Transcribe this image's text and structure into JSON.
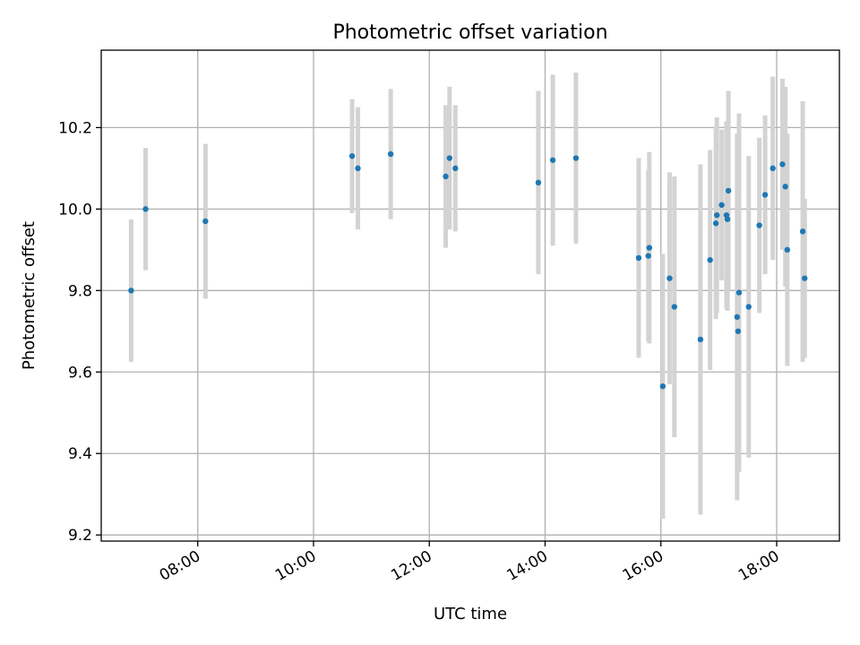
{
  "chart_data": {
    "type": "scatter",
    "title": "Photometric offset variation",
    "xlabel": "UTC time",
    "ylabel": "Photometric offset",
    "xlim": [
      "06:20",
      "19:05"
    ],
    "ylim": [
      9.185,
      10.39
    ],
    "grid": true,
    "x_ticks": [
      "08:00",
      "10:00",
      "12:00",
      "14:00",
      "16:00",
      "18:00"
    ],
    "y_ticks": [
      9.2,
      9.4,
      9.6,
      9.8,
      10.0,
      10.2
    ],
    "point_color": "#1f77b4",
    "errorbar_color": "#d3d3d3",
    "series": [
      {
        "points": [
          {
            "x": "06:51",
            "y": 9.8,
            "err": 0.175
          },
          {
            "x": "07:06",
            "y": 10.0,
            "err": 0.15
          },
          {
            "x": "08:08",
            "y": 9.97,
            "err": 0.19
          },
          {
            "x": "10:40",
            "y": 10.13,
            "err": 0.14
          },
          {
            "x": "10:46",
            "y": 10.1,
            "err": 0.15
          },
          {
            "x": "11:20",
            "y": 10.135,
            "err": 0.16
          },
          {
            "x": "12:17",
            "y": 10.08,
            "err": 0.175
          },
          {
            "x": "12:21",
            "y": 10.125,
            "err": 0.175
          },
          {
            "x": "12:27",
            "y": 10.1,
            "err": 0.155
          },
          {
            "x": "13:53",
            "y": 10.065,
            "err": 0.225
          },
          {
            "x": "14:08",
            "y": 10.12,
            "err": 0.21
          },
          {
            "x": "14:32",
            "y": 10.125,
            "err": 0.21
          },
          {
            "x": "15:37",
            "y": 9.88,
            "err": 0.245
          },
          {
            "x": "15:47",
            "y": 9.885,
            "err": 0.21
          },
          {
            "x": "15:48",
            "y": 9.905,
            "err": 0.235
          },
          {
            "x": "16:02",
            "y": 9.565,
            "err": 0.325
          },
          {
            "x": "16:09",
            "y": 9.83,
            "err": 0.26
          },
          {
            "x": "16:14",
            "y": 9.76,
            "err": 0.32
          },
          {
            "x": "16:41",
            "y": 9.68,
            "err": 0.43
          },
          {
            "x": "16:51",
            "y": 9.875,
            "err": 0.27
          },
          {
            "x": "16:57",
            "y": 9.965,
            "err": 0.235
          },
          {
            "x": "16:58",
            "y": 9.985,
            "err": 0.24
          },
          {
            "x": "17:03",
            "y": 10.01,
            "err": 0.185
          },
          {
            "x": "17:08",
            "y": 9.985,
            "err": 0.23
          },
          {
            "x": "17:09",
            "y": 9.975,
            "err": 0.225
          },
          {
            "x": "17:10",
            "y": 10.045,
            "err": 0.245
          },
          {
            "x": "17:19",
            "y": 9.735,
            "err": 0.45
          },
          {
            "x": "17:20",
            "y": 9.7,
            "err": 0.34
          },
          {
            "x": "17:21",
            "y": 9.795,
            "err": 0.44
          },
          {
            "x": "17:31",
            "y": 9.76,
            "err": 0.37
          },
          {
            "x": "17:42",
            "y": 9.96,
            "err": 0.215
          },
          {
            "x": "17:48",
            "y": 10.035,
            "err": 0.195
          },
          {
            "x": "17:56",
            "y": 10.1,
            "err": 0.225
          },
          {
            "x": "18:06",
            "y": 10.11,
            "err": 0.21
          },
          {
            "x": "18:09",
            "y": 10.055,
            "err": 0.245
          },
          {
            "x": "18:11",
            "y": 9.9,
            "err": 0.285
          },
          {
            "x": "18:27",
            "y": 9.945,
            "err": 0.32
          },
          {
            "x": "18:29",
            "y": 9.83,
            "err": 0.195
          }
        ]
      }
    ]
  }
}
